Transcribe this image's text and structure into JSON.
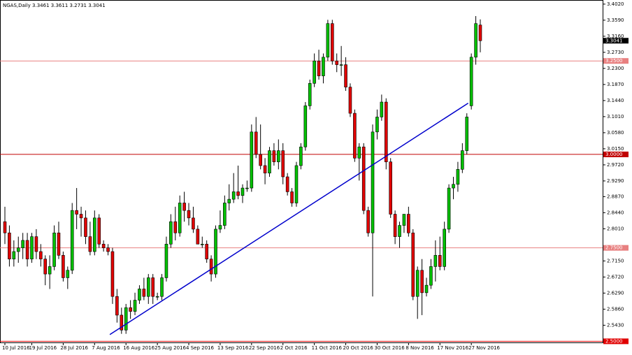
{
  "chart_data": {
    "type": "candlestick",
    "title": "NGAS,Daily  3.3461 3.3611 3.2731 3.3041",
    "categories": [
      "10 Jul 2016",
      null,
      null,
      null,
      null,
      null,
      "19 Jul 2016",
      null,
      null,
      null,
      null,
      null,
      null,
      "28 Jul 2016",
      null,
      null,
      null,
      null,
      null,
      null,
      "7 Aug 2016",
      null,
      null,
      null,
      null,
      null,
      null,
      "16 Aug 2016",
      null,
      null,
      null,
      null,
      null,
      null,
      "25 Aug 2016",
      null,
      null,
      null,
      null,
      null,
      null,
      "4 Sep 2016",
      null,
      null,
      null,
      null,
      null,
      null,
      "13 Sep 2016",
      null,
      null,
      null,
      null,
      null,
      null,
      "22 Sep 2016",
      null,
      null,
      null,
      null,
      null,
      null,
      "2 Oct 2016",
      null,
      null,
      null,
      null,
      null,
      null,
      "11 Oct 2016",
      null,
      null,
      null,
      null,
      null,
      null,
      "20 Oct 2016",
      null,
      null,
      null,
      null,
      null,
      null,
      "30 Oct 2016",
      null,
      null,
      null,
      null,
      null,
      null,
      "8 Nov 2016",
      null,
      null,
      null,
      null,
      null,
      null,
      "17 Nov 2016",
      null,
      null,
      null,
      null,
      null,
      null,
      "27 Nov 2016",
      null,
      null
    ],
    "open": [
      2.82,
      2.79,
      2.72,
      2.74,
      2.75,
      2.77,
      2.72,
      2.78,
      2.74,
      2.72,
      2.68,
      2.7,
      2.79,
      2.73,
      2.67,
      2.69,
      2.85,
      2.84,
      2.83,
      2.78,
      2.74,
      2.83,
      2.76,
      2.75,
      2.74,
      2.62,
      2.57,
      2.53,
      2.59,
      2.58,
      2.61,
      2.64,
      2.62,
      2.67,
      2.62,
      2.62,
      2.67,
      2.76,
      2.82,
      2.79,
      2.87,
      2.85,
      2.83,
      2.8,
      2.76,
      2.76,
      2.72,
      2.68,
      2.8,
      2.81,
      2.87,
      2.88,
      2.9,
      2.89,
      2.91,
      2.91,
      3.06,
      3.0,
      2.97,
      2.95,
      3.01,
      2.98,
      3.01,
      2.94,
      2.9,
      2.87,
      2.97,
      3.02,
      3.13,
      3.19,
      3.25,
      3.21,
      3.26,
      3.35,
      3.25,
      3.24,
      3.24,
      3.18,
      3.11,
      2.99,
      3.02,
      2.85,
      2.79,
      3.06,
      3.1,
      3.14,
      2.98,
      2.84,
      2.78,
      2.81,
      2.84,
      2.79,
      2.62,
      2.69,
      2.63,
      2.65,
      2.7,
      2.73,
      2.7,
      2.8,
      2.91,
      2.92,
      2.96,
      3.01,
      3.13,
      3.26,
      3.3461
    ],
    "high": [
      2.86,
      2.81,
      2.77,
      2.78,
      2.79,
      2.79,
      2.79,
      2.8,
      2.76,
      2.73,
      2.73,
      2.81,
      2.82,
      2.74,
      2.7,
      2.87,
      2.91,
      2.86,
      2.85,
      2.82,
      2.85,
      2.84,
      2.77,
      2.76,
      2.75,
      2.64,
      2.59,
      2.6,
      2.61,
      2.63,
      2.65,
      2.67,
      2.68,
      2.68,
      2.63,
      2.68,
      2.78,
      2.84,
      2.86,
      2.89,
      2.9,
      2.87,
      2.86,
      2.81,
      2.78,
      2.77,
      2.73,
      2.81,
      2.85,
      2.89,
      2.92,
      2.95,
      2.97,
      2.92,
      2.93,
      3.08,
      3.1,
      3.08,
      2.99,
      3.02,
      3.03,
      3.04,
      3.03,
      2.95,
      2.91,
      2.98,
      3.03,
      3.14,
      3.2,
      3.27,
      3.28,
      3.27,
      3.36,
      3.36,
      3.27,
      3.29,
      3.26,
      3.19,
      3.12,
      3.03,
      3.03,
      2.86,
      3.08,
      3.12,
      3.16,
      3.15,
      2.99,
      2.85,
      2.82,
      2.84,
      2.86,
      2.8,
      2.7,
      2.72,
      2.67,
      2.72,
      2.77,
      2.78,
      2.82,
      2.92,
      2.94,
      2.98,
      3.03,
      3.11,
      3.27,
      3.37,
      3.3611
    ],
    "low": [
      2.76,
      2.7,
      2.7,
      2.71,
      2.72,
      2.7,
      2.71,
      2.72,
      2.7,
      2.65,
      2.64,
      2.69,
      2.72,
      2.66,
      2.64,
      2.68,
      2.8,
      2.78,
      2.76,
      2.73,
      2.73,
      2.75,
      2.74,
      2.73,
      2.6,
      2.55,
      2.52,
      2.52,
      2.56,
      2.57,
      2.6,
      2.61,
      2.6,
      2.6,
      2.61,
      2.61,
      2.66,
      2.75,
      2.77,
      2.78,
      2.82,
      2.81,
      2.79,
      2.76,
      2.75,
      2.71,
      2.66,
      2.67,
      2.79,
      2.8,
      2.85,
      2.87,
      2.88,
      2.87,
      2.9,
      2.9,
      2.99,
      2.96,
      2.92,
      2.94,
      2.97,
      2.96,
      2.92,
      2.89,
      2.86,
      2.86,
      2.96,
      3.01,
      3.12,
      3.18,
      3.2,
      3.19,
      3.25,
      3.24,
      3.22,
      3.21,
      3.17,
      3.1,
      2.98,
      2.93,
      2.84,
      2.78,
      2.62,
      3.04,
      3.09,
      2.96,
      2.83,
      2.76,
      2.75,
      2.79,
      2.78,
      2.61,
      2.56,
      2.57,
      2.62,
      2.64,
      2.66,
      2.69,
      2.69,
      2.79,
      2.88,
      2.9,
      2.95,
      3.0,
      3.12,
      3.24,
      3.2731
    ],
    "close": [
      2.79,
      2.72,
      2.74,
      2.75,
      2.77,
      2.72,
      2.78,
      2.74,
      2.72,
      2.68,
      2.7,
      2.79,
      2.73,
      2.67,
      2.69,
      2.85,
      2.84,
      2.83,
      2.78,
      2.74,
      2.83,
      2.76,
      2.75,
      2.74,
      2.62,
      2.57,
      2.53,
      2.59,
      2.58,
      2.61,
      2.64,
      2.62,
      2.67,
      2.62,
      2.62,
      2.67,
      2.76,
      2.82,
      2.79,
      2.87,
      2.85,
      2.83,
      2.8,
      2.76,
      2.76,
      2.72,
      2.68,
      2.8,
      2.81,
      2.87,
      2.88,
      2.9,
      2.89,
      2.91,
      2.91,
      3.06,
      3.0,
      2.97,
      2.95,
      3.01,
      2.98,
      3.01,
      2.94,
      2.9,
      2.87,
      2.97,
      3.02,
      3.13,
      3.19,
      3.25,
      3.21,
      3.26,
      3.35,
      3.25,
      3.24,
      3.24,
      3.18,
      3.11,
      2.99,
      3.02,
      2.85,
      2.79,
      3.06,
      3.1,
      3.14,
      2.98,
      2.84,
      2.78,
      2.81,
      2.84,
      2.79,
      2.62,
      2.69,
      2.63,
      2.65,
      2.7,
      2.73,
      2.7,
      2.8,
      2.91,
      2.92,
      2.96,
      3.01,
      3.1,
      3.26,
      3.35,
      3.3041
    ],
    "up_color": "#00c000",
    "down_color": "#e00000",
    "ylim": [
      2.497,
      3.413
    ],
    "yticks": [
      {
        "value": 3.402,
        "label": "3.4020"
      },
      {
        "value": 3.359,
        "label": "3.3590"
      },
      {
        "value": 3.316,
        "label": "3.3160"
      },
      {
        "value": 3.273,
        "label": "3.2730"
      },
      {
        "value": 3.23,
        "label": "3.2300"
      },
      {
        "value": 3.187,
        "label": "3.1870"
      },
      {
        "value": 3.144,
        "label": "3.1440"
      },
      {
        "value": 3.101,
        "label": "3.1010"
      },
      {
        "value": 3.058,
        "label": "3.0580"
      },
      {
        "value": 3.015,
        "label": "3.0150"
      },
      {
        "value": 2.972,
        "label": "2.9720"
      },
      {
        "value": 2.929,
        "label": "2.9290"
      },
      {
        "value": 2.887,
        "label": "2.8870"
      },
      {
        "value": 2.844,
        "label": "2.8440"
      },
      {
        "value": 2.801,
        "label": "2.8010"
      },
      {
        "value": 2.715,
        "label": "2.7150"
      },
      {
        "value": 2.672,
        "label": "2.6720"
      },
      {
        "value": 2.629,
        "label": "2.6290"
      },
      {
        "value": 2.586,
        "label": "2.5860"
      },
      {
        "value": 2.543,
        "label": "2.5430"
      }
    ],
    "levels": [
      {
        "value": 3.25,
        "label": "3.2500",
        "color": "#e88080"
      },
      {
        "value": 3.0,
        "label": "3.0000",
        "color": "#c00000"
      },
      {
        "value": 2.75,
        "label": "2.7500",
        "color": "#e88080"
      },
      {
        "value": 2.5,
        "label": "2.5000",
        "color": "#e00000"
      }
    ],
    "last_price": {
      "value": 3.3041,
      "label": "3.3041"
    },
    "trendline": {
      "color": "#0000cc",
      "from": {
        "bar": 23.4,
        "price": 2.518
      },
      "to": {
        "bar": 103.3,
        "price": 3.137
      }
    }
  }
}
